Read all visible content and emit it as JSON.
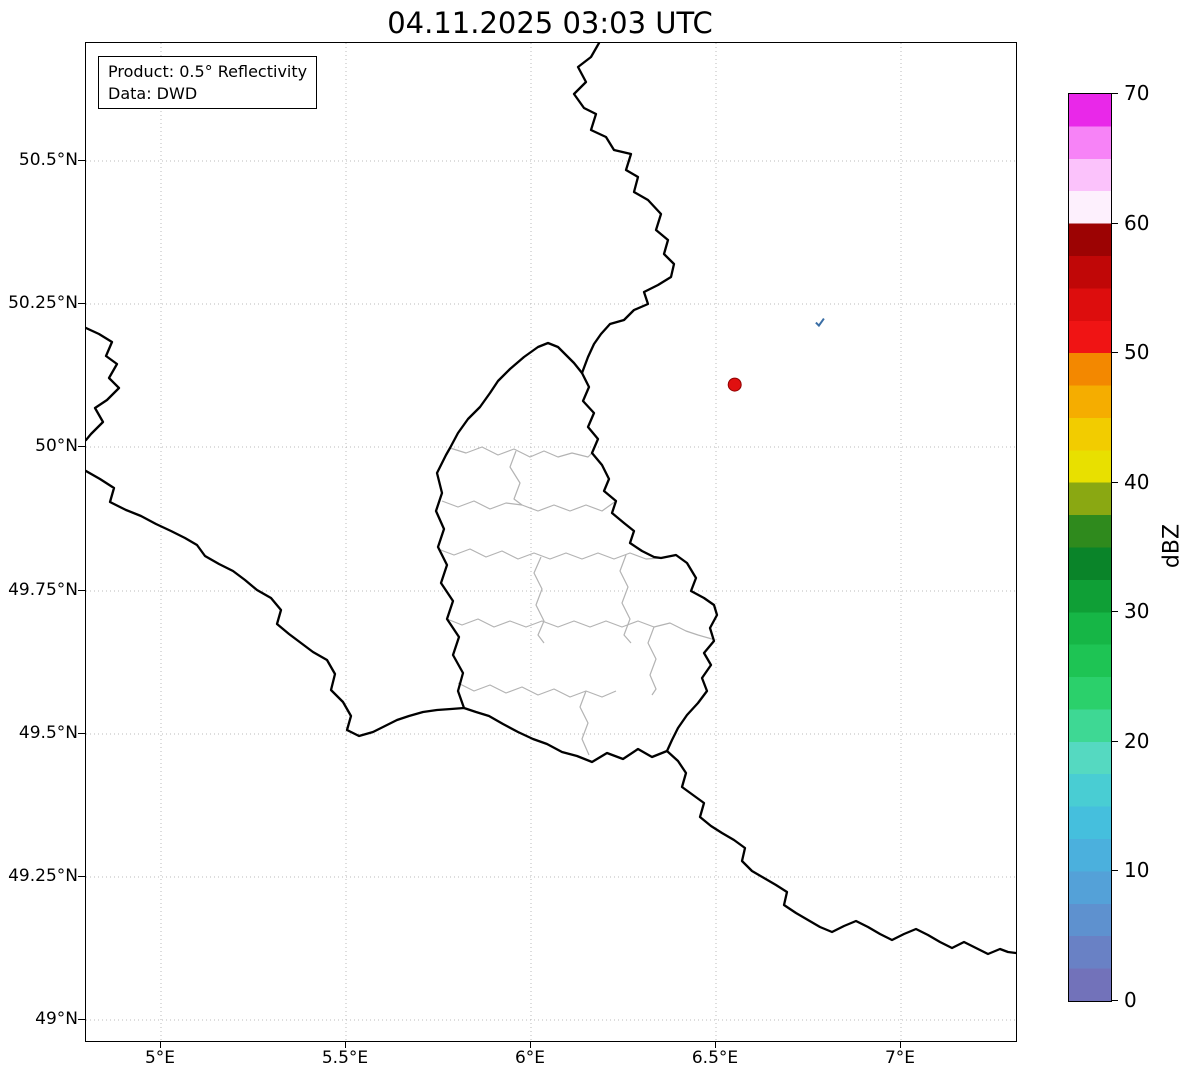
{
  "title": "04.11.2025 03:03 UTC",
  "info_box": {
    "product": "Product: 0.5° Reflectivity",
    "data_source": "Data: DWD"
  },
  "axes": {
    "lon_range": [
      4.797,
      7.31
    ],
    "lat_range": [
      48.965,
      50.706
    ],
    "grid_style": "dotted",
    "x_ticks": [
      {
        "label": "5°E",
        "lon": 5.0
      },
      {
        "label": "5.5°E",
        "lon": 5.5
      },
      {
        "label": "6°E",
        "lon": 6.0
      },
      {
        "label": "6.5°E",
        "lon": 6.5
      },
      {
        "label": "7°E",
        "lon": 7.0
      }
    ],
    "y_ticks": [
      {
        "label": "50.5°N",
        "lat": 50.5
      },
      {
        "label": "50.25°N",
        "lat": 50.25
      },
      {
        "label": "50°N",
        "lat": 50.0
      },
      {
        "label": "49.75°N",
        "lat": 49.75
      },
      {
        "label": "49.5°N",
        "lat": 49.5
      },
      {
        "label": "49.25°N",
        "lat": 49.25
      },
      {
        "label": "49°N",
        "lat": 49.0
      }
    ]
  },
  "colorbar": {
    "label": "dBZ",
    "min": 0,
    "max": 70,
    "tick_labels_top_to_bottom": [
      "70",
      "60",
      "50",
      "40",
      "30",
      "20",
      "10",
      "0"
    ],
    "colors_bottom_to_top": [
      "#7272ba",
      "#6981c5",
      "#5e91cf",
      "#54a1d8",
      "#4bb0dd",
      "#45bfdd",
      "#49cdd3",
      "#55d9c1",
      "#3ed894",
      "#2bd06b",
      "#1ec454",
      "#16b646",
      "#0f9f36",
      "#0a8429",
      "#2f8a1d",
      "#8aa812",
      "#e8e000",
      "#f2cc00",
      "#f5ad00",
      "#f38800",
      "#f01414",
      "#dd0d0d",
      "#c00707",
      "#9c0303",
      "#fdf0fd",
      "#fbc2fb",
      "#f783f7",
      "#e928e9"
    ]
  },
  "markers": {
    "radar_cell": {
      "lon": 6.55,
      "lat": 50.11,
      "color": "#e01010",
      "shape": "circle"
    },
    "precip_echo": {
      "lon": 6.78,
      "lat": 50.22,
      "color": "#3a6ea5"
    }
  },
  "map_layers": {
    "national_borders_color": "#000000",
    "district_borders_color": "#b3b3b3"
  }
}
